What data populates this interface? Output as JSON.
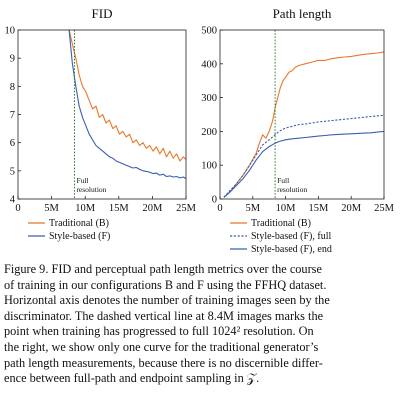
{
  "chart_data": [
    {
      "type": "line",
      "title": "FID",
      "xlim": [
        0,
        25
      ],
      "ylim": [
        4,
        10
      ],
      "x_ticks": [
        {
          "v": 0,
          "t": "0"
        },
        {
          "v": 5,
          "t": "5M"
        },
        {
          "v": 10,
          "t": "10M"
        },
        {
          "v": 15,
          "t": "15M"
        },
        {
          "v": 20,
          "t": "20M"
        },
        {
          "v": 25,
          "t": "25M"
        }
      ],
      "y_ticks": [
        {
          "v": 4,
          "t": "4"
        },
        {
          "v": 5,
          "t": "5"
        },
        {
          "v": 6,
          "t": "6"
        },
        {
          "v": 7,
          "t": "7"
        },
        {
          "v": 8,
          "t": "8"
        },
        {
          "v": 9,
          "t": "9"
        },
        {
          "v": 10,
          "t": "10"
        }
      ],
      "vline": {
        "x": 8.4,
        "label": [
          "Full",
          "resolution"
        ]
      },
      "series": [
        {
          "name": "Traditional (B)",
          "color": "#e8782a",
          "dash": false,
          "x": [
            7.6,
            8.1,
            8.6,
            9.1,
            9.6,
            10.1,
            10.6,
            11.1,
            11.6,
            12.1,
            12.6,
            13.1,
            13.6,
            14.1,
            14.6,
            15.1,
            15.6,
            16.1,
            16.6,
            17.1,
            17.6,
            18.1,
            18.6,
            19.1,
            19.6,
            20.1,
            20.6,
            21.1,
            21.6,
            22.1,
            22.6,
            23.1,
            23.6,
            24.1,
            24.6,
            25.0
          ],
          "y": [
            10.0,
            9.5,
            9.0,
            8.4,
            8.0,
            7.8,
            7.5,
            7.2,
            7.3,
            6.9,
            7.0,
            6.7,
            6.8,
            6.5,
            6.6,
            6.3,
            6.4,
            6.2,
            6.3,
            6.0,
            6.1,
            5.9,
            6.0,
            5.8,
            5.9,
            5.7,
            5.85,
            5.6,
            5.8,
            5.5,
            5.7,
            5.45,
            5.6,
            5.35,
            5.5,
            5.4
          ]
        },
        {
          "name": "Style-based (F)",
          "color": "#3a5fb0",
          "dash": false,
          "x": [
            7.6,
            8.1,
            8.6,
            9.1,
            9.6,
            10.1,
            10.6,
            11.1,
            11.6,
            12.1,
            12.6,
            13.1,
            13.6,
            14.1,
            14.6,
            15.1,
            15.6,
            16.1,
            16.6,
            17.1,
            17.6,
            18.1,
            18.6,
            19.1,
            19.6,
            20.1,
            20.6,
            21.1,
            21.6,
            22.1,
            22.6,
            23.1,
            23.6,
            24.1,
            24.6,
            25.0
          ],
          "y": [
            10.0,
            8.8,
            8.0,
            7.3,
            6.9,
            6.6,
            6.3,
            6.1,
            5.9,
            5.8,
            5.7,
            5.6,
            5.5,
            5.45,
            5.35,
            5.3,
            5.25,
            5.2,
            5.15,
            5.1,
            5.12,
            5.05,
            5.0,
            4.98,
            4.95,
            4.9,
            4.92,
            4.85,
            4.88,
            4.8,
            4.82,
            4.78,
            4.8,
            4.75,
            4.78,
            4.72
          ]
        }
      ],
      "legend": [
        {
          "label": "Traditional (B)",
          "color": "#e8782a",
          "dash": false
        },
        {
          "label": "Style-based (F)",
          "color": "#3a5fb0",
          "dash": false
        }
      ]
    },
    {
      "type": "line",
      "title": "Path length",
      "xlim": [
        0,
        25
      ],
      "ylim": [
        0,
        500
      ],
      "x_ticks": [
        {
          "v": 0,
          "t": "0"
        },
        {
          "v": 5,
          "t": "5M"
        },
        {
          "v": 10,
          "t": "10M"
        },
        {
          "v": 15,
          "t": "15M"
        },
        {
          "v": 20,
          "t": "20M"
        },
        {
          "v": 25,
          "t": "25M"
        }
      ],
      "y_ticks": [
        {
          "v": 0,
          "t": "0"
        },
        {
          "v": 100,
          "t": "100"
        },
        {
          "v": 200,
          "t": "200"
        },
        {
          "v": 300,
          "t": "300"
        },
        {
          "v": 400,
          "t": "400"
        },
        {
          "v": 500,
          "t": "500"
        }
      ],
      "vline": {
        "x": 8.4,
        "label": [
          "Full",
          "resolution"
        ]
      },
      "series": [
        {
          "name": "Traditional (B)",
          "color": "#e8782a",
          "dash": false,
          "x": [
            0.6,
            1.5,
            2.5,
            3.5,
            4.5,
            5.5,
            6.0,
            6.5,
            7.0,
            7.5,
            8.0,
            8.4,
            8.8,
            9.2,
            9.6,
            10.0,
            10.5,
            11.0,
            11.5,
            12.0,
            13,
            14,
            15,
            16,
            17,
            18,
            19,
            20,
            21,
            22,
            23,
            24,
            25
          ],
          "y": [
            5,
            20,
            45,
            70,
            100,
            135,
            165,
            190,
            180,
            200,
            230,
            270,
            300,
            330,
            350,
            360,
            375,
            380,
            390,
            395,
            400,
            405,
            410,
            410,
            415,
            418,
            420,
            422,
            425,
            428,
            430,
            432,
            435
          ]
        },
        {
          "name": "Style-based (F), full",
          "color": "#3a5fb0",
          "dash": true,
          "x": [
            0.6,
            1.5,
            2.5,
            3.5,
            4.5,
            5.5,
            6.5,
            7.5,
            8.4,
            9.0,
            10,
            11,
            12,
            13,
            14,
            15,
            16,
            17,
            18,
            19,
            20,
            21,
            22,
            23,
            24,
            25
          ],
          "y": [
            5,
            25,
            45,
            70,
            100,
            130,
            160,
            175,
            190,
            200,
            210,
            215,
            220,
            222,
            225,
            228,
            230,
            232,
            234,
            236,
            238,
            240,
            242,
            244,
            246,
            248
          ]
        },
        {
          "name": "Style-based (F), end",
          "color": "#3a5fb0",
          "dash": false,
          "x": [
            0.6,
            1.5,
            2.5,
            3.5,
            4.5,
            5.5,
            6.5,
            7.5,
            8.4,
            9.0,
            10,
            11,
            12,
            13,
            14,
            15,
            16,
            17,
            18,
            19,
            20,
            21,
            22,
            23,
            24,
            25
          ],
          "y": [
            5,
            20,
            40,
            60,
            85,
            115,
            140,
            155,
            165,
            170,
            175,
            178,
            180,
            182,
            184,
            186,
            188,
            190,
            191,
            192,
            193,
            194,
            195,
            196,
            198,
            200
          ]
        }
      ],
      "legend": [
        {
          "label": "Traditional (B)",
          "color": "#e8782a",
          "dash": false
        },
        {
          "label": "Style-based (F), full",
          "color": "#3a5fb0",
          "dash": true
        },
        {
          "label": "Style-based (F), end",
          "color": "#3a5fb0",
          "dash": false
        }
      ]
    }
  ],
  "caption": {
    "lines": [
      "Figure 9. FID and perceptual path length metrics over the course",
      "of training in our configurations B and F using the FFHQ dataset.",
      "Horizontal axis denotes the number of training images seen by the",
      "discriminator. The dashed vertical line at 8.4M images marks the",
      "point when training has progressed to full 1024² resolution. On",
      "the right, we show only one curve for the traditional generator’s",
      "path length measurements, because there is no discernible differ-",
      "ence between full-path and endpoint sampling in 𝒵."
    ]
  }
}
